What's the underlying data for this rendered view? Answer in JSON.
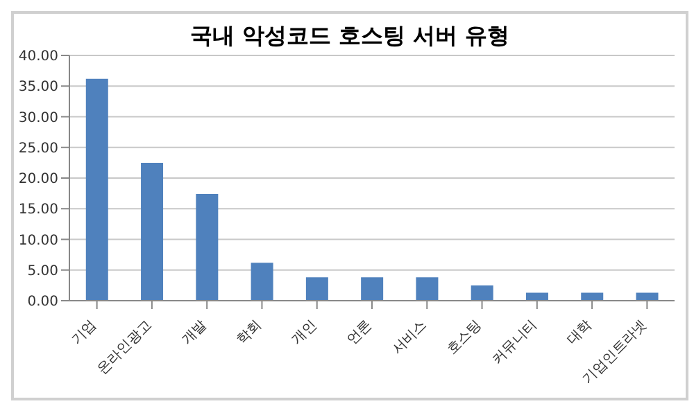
{
  "chart_data": {
    "type": "bar",
    "title": "국내 악성코드 호스팅 서버 유형",
    "categories": [
      "기업",
      "온라인광고",
      "개발",
      "학회",
      "개인",
      "언론",
      "서비스",
      "호스팅",
      "커뮤니티",
      "대학",
      "기업인트라넷"
    ],
    "values": [
      36.2,
      22.5,
      17.4,
      6.2,
      3.8,
      3.8,
      3.8,
      2.5,
      1.3,
      1.3,
      1.3
    ],
    "color": "#4f81bd",
    "ylim": [
      0,
      40
    ],
    "yticks": [
      {
        "value": 0,
        "label": "0.00"
      },
      {
        "value": 5,
        "label": "5.00"
      },
      {
        "value": 10,
        "label": "10.00"
      },
      {
        "value": 15,
        "label": "15.00"
      },
      {
        "value": 20,
        "label": "20.00"
      },
      {
        "value": 25,
        "label": "25.00"
      },
      {
        "value": 30,
        "label": "30.00"
      },
      {
        "value": 35,
        "label": "35.00"
      },
      {
        "value": 40,
        "label": "40.00"
      }
    ],
    "grid": "y"
  }
}
